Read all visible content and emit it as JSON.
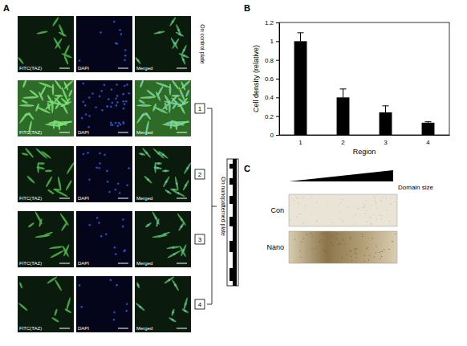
{
  "figure": {
    "panel_labels": [
      "A",
      "B",
      "C"
    ],
    "panel_a": {
      "channels": [
        "FITC(TAZ)",
        "DAPI",
        "Merged"
      ],
      "control_label": "On control plate",
      "region_labels": [
        "1",
        "2",
        "3",
        "4"
      ],
      "nano_label": "On nanopatterned plate"
    },
    "panel_c": {
      "domain_label": "Domain size",
      "rows": [
        "Con",
        "Nano"
      ]
    }
  },
  "chart_data": {
    "type": "bar",
    "categories": [
      "1",
      "2",
      "3",
      "4"
    ],
    "values": [
      1,
      0.4,
      0.24,
      0.13
    ],
    "errors": [
      0.09,
      0.09,
      0.07,
      0.01
    ],
    "color": "#000000",
    "xlabel": "Region",
    "ylabel": "Cell density (relative)",
    "ylim": [
      0,
      1.2
    ],
    "yticks": [
      0,
      0.2,
      0.4,
      0.6,
      0.8,
      1,
      1.2
    ],
    "grid": false
  }
}
